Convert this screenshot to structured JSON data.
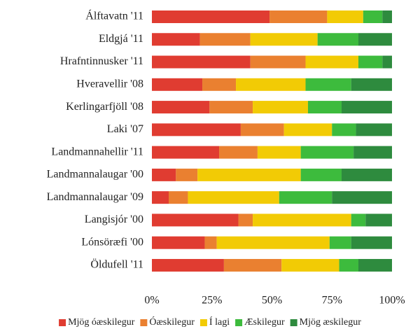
{
  "chart_data": {
    "type": "stacked_bar_horizontal",
    "categories": [
      "Álftavatn '11",
      "Eldgjá '11",
      "Hrafntinnusker '11",
      "Hveravellir '08",
      "Kerlingarfjöll '08",
      "Laki '07",
      "Landmannahellir '11",
      "Landmannalaugar '00",
      "Landmannalaugar '09",
      "Langisjór '00",
      "Lónsöræfi '00",
      "Öldufell '11"
    ],
    "series": [
      {
        "name": "Mjög óæskilegur",
        "color": "#e03c31",
        "values": [
          49,
          20,
          41,
          21,
          24,
          37,
          28,
          10,
          7,
          36,
          22,
          30
        ]
      },
      {
        "name": "Óæskilegur",
        "color": "#ea8030",
        "values": [
          24,
          21,
          23,
          14,
          18,
          18,
          16,
          9,
          8,
          6,
          5,
          24
        ]
      },
      {
        "name": "Í lagi",
        "color": "#f2cb05",
        "values": [
          15,
          28,
          22,
          29,
          23,
          20,
          18,
          43,
          38,
          41,
          47,
          24
        ]
      },
      {
        "name": "Æskilegur",
        "color": "#3dbb3d",
        "values": [
          8,
          17,
          10,
          19,
          14,
          10,
          22,
          17,
          22,
          6,
          9,
          8
        ]
      },
      {
        "name": "Mjög æskilegur",
        "color": "#2e8b3e",
        "values": [
          4,
          14,
          4,
          17,
          21,
          15,
          16,
          21,
          25,
          11,
          17,
          14
        ]
      }
    ],
    "xlim": [
      0,
      100
    ],
    "xticks": [
      {
        "value": 0,
        "label": "0%"
      },
      {
        "value": 25,
        "label": "25%"
      },
      {
        "value": 50,
        "label": "50%"
      },
      {
        "value": 75,
        "label": "75%"
      },
      {
        "value": 100,
        "label": "100%"
      }
    ],
    "legend": "bottom"
  }
}
